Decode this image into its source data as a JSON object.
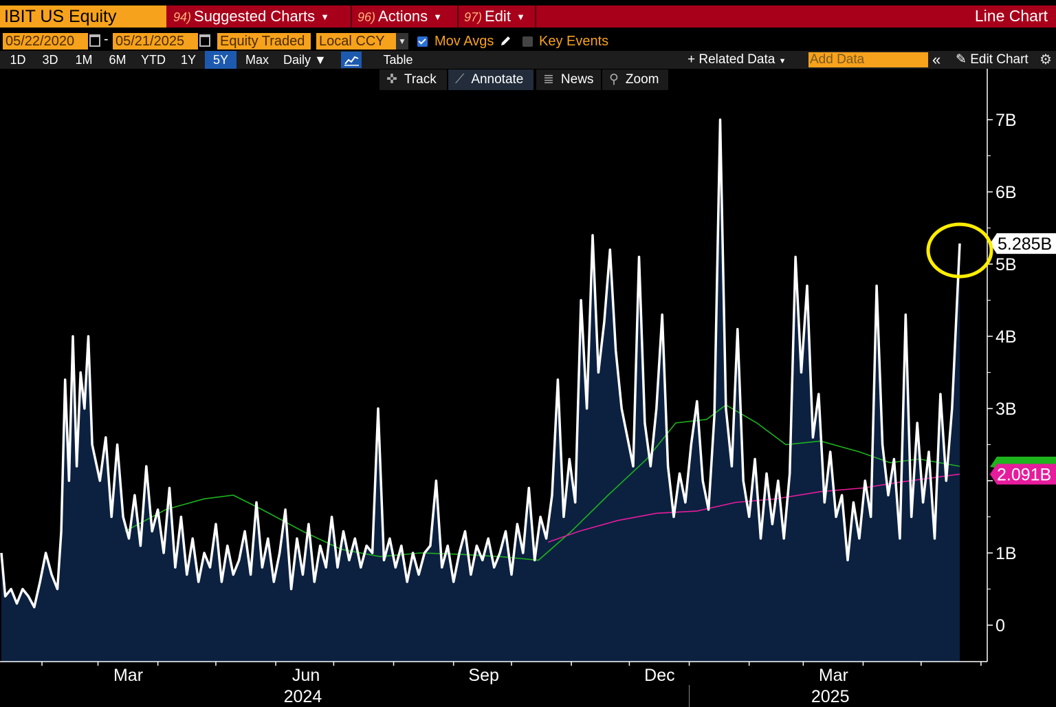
{
  "header": {
    "security": "IBIT US Equity",
    "menus": [
      {
        "num": "94)",
        "label": "Suggested Charts"
      },
      {
        "num": "96)",
        "label": "Actions"
      },
      {
        "num": "97)",
        "label": "Edit"
      }
    ],
    "chart_type": "Line Chart"
  },
  "controls": {
    "start_date": "05/22/2020",
    "end_date": "05/21/2025",
    "date_separator": "-",
    "field": "Equity Traded",
    "currency": "Local CCY",
    "mov_avgs": "Mov Avgs",
    "key_events": "Key Events"
  },
  "periods": [
    "1D",
    "3D",
    "1M",
    "6M",
    "YTD",
    "1Y",
    "5Y",
    "Max"
  ],
  "active_period": "5Y",
  "frequency": "Daily",
  "table_label": "Table",
  "related_data": "Related Data",
  "add_data_placeholder": "Add Data",
  "edit_chart": "Edit Chart",
  "tools": [
    "Track",
    "Annotate",
    "News",
    "Zoom"
  ],
  "active_tool": "Annotate",
  "colors": {
    "price_line": "#ffffff",
    "area_fill": "#0c2140",
    "ma_short": "#1db31d",
    "ma_long": "#e61c9c",
    "highlight_circle": "#ffee00",
    "header_orange": "#f7a21c",
    "header_red": "#a8001a"
  },
  "chart_data": {
    "type": "area",
    "title": "",
    "xlabel": "",
    "ylabel": "",
    "ylim": [
      0,
      8000000000
    ],
    "yticks": [
      {
        "value": 0,
        "label": "0"
      },
      {
        "value": 1000000000,
        "label": "1B"
      },
      {
        "value": 3000000000,
        "label": "3B"
      },
      {
        "value": 4000000000,
        "label": "4B"
      },
      {
        "value": 5000000000,
        "label": "5B"
      },
      {
        "value": 6000000000,
        "label": "6B"
      },
      {
        "value": 7000000000,
        "label": "7B"
      }
    ],
    "xticks": [
      {
        "date": "2024-03-01",
        "label": "Mar"
      },
      {
        "date": "2024-06-01",
        "label": "Jun"
      },
      {
        "date": "2024-09-01",
        "label": "Sep"
      },
      {
        "date": "2024-12-01",
        "label": "Dec"
      },
      {
        "date": "2025-03-01",
        "label": "Mar"
      }
    ],
    "year_labels": [
      {
        "date": "2024-06-15",
        "label": "2024"
      },
      {
        "date": "2025-03-15",
        "label": "2025"
      }
    ],
    "series": [
      {
        "key": "equity_traded",
        "color": "#ffffff",
        "last_value_label": "5.285B",
        "points": [
          [
            "2024-01-11",
            1000000000
          ],
          [
            "2024-01-13",
            400000000
          ],
          [
            "2024-01-16",
            500000000
          ],
          [
            "2024-01-19",
            300000000
          ],
          [
            "2024-01-22",
            500000000
          ],
          [
            "2024-01-25",
            400000000
          ],
          [
            "2024-01-28",
            250000000
          ],
          [
            "2024-01-31",
            600000000
          ],
          [
            "2024-02-03",
            1000000000
          ],
          [
            "2024-02-06",
            700000000
          ],
          [
            "2024-02-09",
            500000000
          ],
          [
            "2024-02-11",
            1300000000
          ],
          [
            "2024-02-13",
            3400000000
          ],
          [
            "2024-02-15",
            2000000000
          ],
          [
            "2024-02-17",
            4000000000
          ],
          [
            "2024-02-19",
            2200000000
          ],
          [
            "2024-02-21",
            3500000000
          ],
          [
            "2024-02-23",
            3000000000
          ],
          [
            "2024-02-25",
            4000000000
          ],
          [
            "2024-02-27",
            2500000000
          ],
          [
            "2024-03-02",
            2000000000
          ],
          [
            "2024-03-05",
            2600000000
          ],
          [
            "2024-03-08",
            1500000000
          ],
          [
            "2024-03-11",
            2500000000
          ],
          [
            "2024-03-14",
            1500000000
          ],
          [
            "2024-03-17",
            1200000000
          ],
          [
            "2024-03-20",
            1800000000
          ],
          [
            "2024-03-23",
            1100000000
          ],
          [
            "2024-03-26",
            2200000000
          ],
          [
            "2024-03-29",
            1300000000
          ],
          [
            "2024-04-01",
            1600000000
          ],
          [
            "2024-04-04",
            1000000000
          ],
          [
            "2024-04-07",
            1900000000
          ],
          [
            "2024-04-10",
            800000000
          ],
          [
            "2024-04-13",
            1500000000
          ],
          [
            "2024-04-16",
            700000000
          ],
          [
            "2024-04-19",
            1200000000
          ],
          [
            "2024-04-22",
            600000000
          ],
          [
            "2024-04-25",
            1000000000
          ],
          [
            "2024-04-28",
            800000000
          ],
          [
            "2024-05-01",
            1400000000
          ],
          [
            "2024-05-04",
            600000000
          ],
          [
            "2024-05-07",
            1100000000
          ],
          [
            "2024-05-10",
            700000000
          ],
          [
            "2024-05-13",
            900000000
          ],
          [
            "2024-05-16",
            1300000000
          ],
          [
            "2024-05-19",
            700000000
          ],
          [
            "2024-05-22",
            1700000000
          ],
          [
            "2024-05-25",
            800000000
          ],
          [
            "2024-05-28",
            1200000000
          ],
          [
            "2024-05-31",
            600000000
          ],
          [
            "2024-06-03",
            1000000000
          ],
          [
            "2024-06-06",
            1600000000
          ],
          [
            "2024-06-09",
            500000000
          ],
          [
            "2024-06-12",
            1200000000
          ],
          [
            "2024-06-15",
            700000000
          ],
          [
            "2024-06-18",
            1400000000
          ],
          [
            "2024-06-21",
            600000000
          ],
          [
            "2024-06-24",
            1100000000
          ],
          [
            "2024-06-27",
            800000000
          ],
          [
            "2024-06-30",
            1500000000
          ],
          [
            "2024-07-03",
            800000000
          ],
          [
            "2024-07-06",
            1300000000
          ],
          [
            "2024-07-09",
            900000000
          ],
          [
            "2024-07-12",
            1200000000
          ],
          [
            "2024-07-15",
            800000000
          ],
          [
            "2024-07-18",
            1100000000
          ],
          [
            "2024-07-21",
            1000000000
          ],
          [
            "2024-07-24",
            3000000000
          ],
          [
            "2024-07-27",
            900000000
          ],
          [
            "2024-07-30",
            1200000000
          ],
          [
            "2024-08-02",
            800000000
          ],
          [
            "2024-08-05",
            1100000000
          ],
          [
            "2024-08-08",
            600000000
          ],
          [
            "2024-08-11",
            1000000000
          ],
          [
            "2024-08-14",
            700000000
          ],
          [
            "2024-08-17",
            1000000000
          ],
          [
            "2024-08-20",
            1100000000
          ],
          [
            "2024-08-23",
            2000000000
          ],
          [
            "2024-08-26",
            800000000
          ],
          [
            "2024-08-29",
            1100000000
          ],
          [
            "2024-09-01",
            600000000
          ],
          [
            "2024-09-04",
            1000000000
          ],
          [
            "2024-09-07",
            1300000000
          ],
          [
            "2024-09-10",
            700000000
          ],
          [
            "2024-09-13",
            1100000000
          ],
          [
            "2024-09-16",
            900000000
          ],
          [
            "2024-09-19",
            1200000000
          ],
          [
            "2024-09-22",
            800000000
          ],
          [
            "2024-09-25",
            1000000000
          ],
          [
            "2024-09-28",
            1300000000
          ],
          [
            "2024-10-01",
            700000000
          ],
          [
            "2024-10-04",
            1400000000
          ],
          [
            "2024-10-07",
            1000000000
          ],
          [
            "2024-10-10",
            1900000000
          ],
          [
            "2024-10-13",
            900000000
          ],
          [
            "2024-10-16",
            1500000000
          ],
          [
            "2024-10-19",
            1200000000
          ],
          [
            "2024-10-22",
            1800000000
          ],
          [
            "2024-10-25",
            3400000000
          ],
          [
            "2024-10-28",
            1500000000
          ],
          [
            "2024-10-31",
            2300000000
          ],
          [
            "2024-11-03",
            1700000000
          ],
          [
            "2024-11-06",
            4500000000
          ],
          [
            "2024-11-09",
            3000000000
          ],
          [
            "2024-11-12",
            5400000000
          ],
          [
            "2024-11-15",
            3500000000
          ],
          [
            "2024-11-18",
            4200000000
          ],
          [
            "2024-11-21",
            5200000000
          ],
          [
            "2024-11-24",
            3800000000
          ],
          [
            "2024-11-27",
            3000000000
          ],
          [
            "2024-11-30",
            2600000000
          ],
          [
            "2024-12-03",
            2200000000
          ],
          [
            "2024-12-06",
            5100000000
          ],
          [
            "2024-12-09",
            2800000000
          ],
          [
            "2024-12-12",
            2200000000
          ],
          [
            "2024-12-15",
            3000000000
          ],
          [
            "2024-12-18",
            4300000000
          ],
          [
            "2024-12-21",
            2200000000
          ],
          [
            "2024-12-24",
            1500000000
          ],
          [
            "2024-12-27",
            2100000000
          ],
          [
            "2024-12-30",
            1700000000
          ],
          [
            "2025-01-02",
            2500000000
          ],
          [
            "2025-01-05",
            3100000000
          ],
          [
            "2025-01-08",
            2000000000
          ],
          [
            "2025-01-11",
            1600000000
          ],
          [
            "2025-01-14",
            2900000000
          ],
          [
            "2025-01-17",
            7000000000
          ],
          [
            "2025-01-20",
            3000000000
          ],
          [
            "2025-01-23",
            2200000000
          ],
          [
            "2025-01-26",
            4100000000
          ],
          [
            "2025-01-29",
            2000000000
          ],
          [
            "2025-02-01",
            1500000000
          ],
          [
            "2025-02-04",
            2300000000
          ],
          [
            "2025-02-07",
            1200000000
          ],
          [
            "2025-02-10",
            2100000000
          ],
          [
            "2025-02-13",
            1400000000
          ],
          [
            "2025-02-16",
            2000000000
          ],
          [
            "2025-02-19",
            1200000000
          ],
          [
            "2025-02-22",
            2100000000
          ],
          [
            "2025-02-25",
            5100000000
          ],
          [
            "2025-02-28",
            3500000000
          ],
          [
            "2025-03-03",
            4700000000
          ],
          [
            "2025-03-06",
            2600000000
          ],
          [
            "2025-03-09",
            3200000000
          ],
          [
            "2025-03-12",
            1700000000
          ],
          [
            "2025-03-15",
            2400000000
          ],
          [
            "2025-03-18",
            1500000000
          ],
          [
            "2025-03-21",
            1800000000
          ],
          [
            "2025-03-24",
            900000000
          ],
          [
            "2025-03-27",
            1700000000
          ],
          [
            "2025-03-30",
            1200000000
          ],
          [
            "2025-04-02",
            2000000000
          ],
          [
            "2025-04-05",
            1500000000
          ],
          [
            "2025-04-08",
            4700000000
          ],
          [
            "2025-04-11",
            2500000000
          ],
          [
            "2025-04-14",
            1800000000
          ],
          [
            "2025-04-17",
            2300000000
          ],
          [
            "2025-04-20",
            1200000000
          ],
          [
            "2025-04-23",
            4300000000
          ],
          [
            "2025-04-26",
            1500000000
          ],
          [
            "2025-04-29",
            2800000000
          ],
          [
            "2025-05-02",
            1700000000
          ],
          [
            "2025-05-05",
            2400000000
          ],
          [
            "2025-05-08",
            1200000000
          ],
          [
            "2025-05-11",
            3200000000
          ],
          [
            "2025-05-14",
            2000000000
          ],
          [
            "2025-05-17",
            3000000000
          ],
          [
            "2025-05-21",
            5285000000
          ]
        ]
      },
      {
        "key": "moving_average_short",
        "color": "#1db31d",
        "last_value_label": "",
        "points": [
          [
            "2024-03-15",
            1300000000
          ],
          [
            "2024-04-05",
            1600000000
          ],
          [
            "2024-04-25",
            1750000000
          ],
          [
            "2024-05-10",
            1800000000
          ],
          [
            "2024-05-25",
            1600000000
          ],
          [
            "2024-06-15",
            1300000000
          ],
          [
            "2024-07-05",
            1050000000
          ],
          [
            "2024-07-25",
            950000000
          ],
          [
            "2024-08-15",
            1000000000
          ],
          [
            "2024-09-05",
            980000000
          ],
          [
            "2024-09-25",
            950000000
          ],
          [
            "2024-10-15",
            900000000
          ],
          [
            "2024-11-01",
            1300000000
          ],
          [
            "2024-11-20",
            1800000000
          ],
          [
            "2024-12-10",
            2300000000
          ],
          [
            "2024-12-25",
            2800000000
          ],
          [
            "2025-01-10",
            2850000000
          ],
          [
            "2025-01-20",
            3050000000
          ],
          [
            "2025-02-05",
            2800000000
          ],
          [
            "2025-02-20",
            2500000000
          ],
          [
            "2025-03-10",
            2550000000
          ],
          [
            "2025-03-30",
            2400000000
          ],
          [
            "2025-04-15",
            2250000000
          ],
          [
            "2025-04-30",
            2300000000
          ],
          [
            "2025-05-21",
            2200000000
          ]
        ]
      },
      {
        "key": "moving_average_long",
        "color": "#e61c9c",
        "last_value_label": "2.091B",
        "points": [
          [
            "2024-10-20",
            1150000000
          ],
          [
            "2024-11-05",
            1300000000
          ],
          [
            "2024-11-25",
            1450000000
          ],
          [
            "2024-12-15",
            1550000000
          ],
          [
            "2025-01-05",
            1580000000
          ],
          [
            "2025-01-25",
            1700000000
          ],
          [
            "2025-02-15",
            1750000000
          ],
          [
            "2025-03-10",
            1850000000
          ],
          [
            "2025-04-01",
            1900000000
          ],
          [
            "2025-04-20",
            1980000000
          ],
          [
            "2025-05-21",
            2091000000
          ]
        ]
      }
    ],
    "highlight": {
      "date": "2025-05-21",
      "value": 5285000000,
      "shape": "circle",
      "color": "#ffee00"
    },
    "grid": false,
    "legend": "none"
  }
}
